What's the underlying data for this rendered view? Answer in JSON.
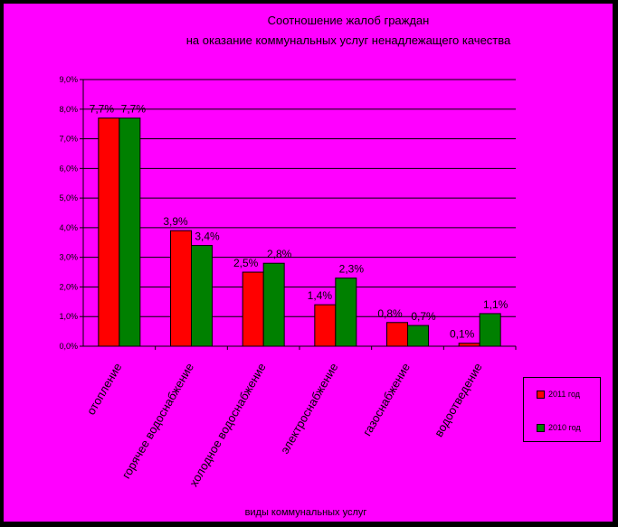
{
  "chart_data": {
    "type": "bar",
    "title_lines": [
      "Соотношение жалоб граждан",
      "на оказание коммунальных услуг ненадлежащего качества"
    ],
    "xlabel": "виды коммунальных услуг",
    "ylabel": "",
    "ylim": [
      0,
      9
    ],
    "yticks": [
      "0,0%",
      "1,0%",
      "2,0%",
      "3,0%",
      "4,0%",
      "5,0%",
      "6,0%",
      "7,0%",
      "8,0%",
      "9,0%"
    ],
    "grid": true,
    "legend_position": "right",
    "categories": [
      "отопление",
      "горячее водоснабжение",
      "холодное водоснабжение",
      "электроснабжение",
      "газоснабжение",
      "водоотведение"
    ],
    "series": [
      {
        "name": "2011 год",
        "color": "#ff0000",
        "values": [
          7.7,
          3.9,
          2.5,
          1.4,
          0.8,
          0.1
        ],
        "labels": [
          "7,7%",
          "3,9%",
          "2,5%",
          "1,4%",
          "0,8%",
          "0,1%"
        ]
      },
      {
        "name": "2010 год",
        "color": "#008000",
        "values": [
          7.7,
          3.4,
          2.8,
          2.3,
          0.7,
          1.1
        ],
        "labels": [
          "7,7%",
          "3,4%",
          "2,8%",
          "2,3%",
          "0,7%",
          "1,1%"
        ]
      }
    ]
  }
}
